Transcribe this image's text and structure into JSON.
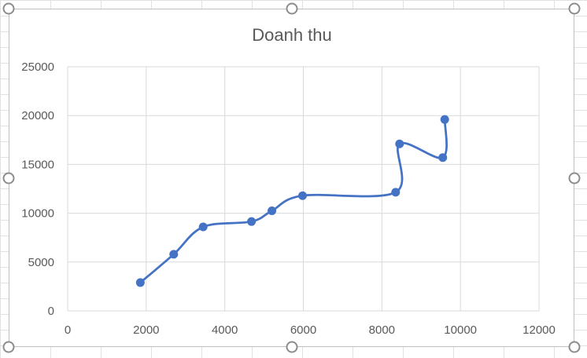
{
  "chart_data": {
    "type": "scatter",
    "title": "Doanh thu",
    "xlabel": "",
    "ylabel": "",
    "xlim": [
      0,
      12000
    ],
    "ylim": [
      0,
      25000
    ],
    "x_ticks": [
      0,
      2000,
      4000,
      6000,
      8000,
      10000,
      12000
    ],
    "y_ticks": [
      0,
      5000,
      10000,
      15000,
      20000,
      25000
    ],
    "x_tick_labels": [
      "0",
      "2000",
      "4000",
      "6000",
      "8000",
      "10000",
      "12000"
    ],
    "y_tick_labels": [
      "0",
      "5000",
      "10000",
      "15000",
      "20000",
      "25000"
    ],
    "grid": true,
    "legend": "none",
    "line_style": "smoothed",
    "series": [
      {
        "color": "#4472c4",
        "points": [
          {
            "x": 1850,
            "y": 2900
          },
          {
            "x": 2700,
            "y": 5800
          },
          {
            "x": 3450,
            "y": 8600
          },
          {
            "x": 4680,
            "y": 9150
          },
          {
            "x": 5200,
            "y": 10250
          },
          {
            "x": 5980,
            "y": 11800
          },
          {
            "x": 8350,
            "y": 12150
          },
          {
            "x": 8450,
            "y": 17100
          },
          {
            "x": 9550,
            "y": 15700
          },
          {
            "x": 9600,
            "y": 19600
          }
        ]
      }
    ]
  }
}
